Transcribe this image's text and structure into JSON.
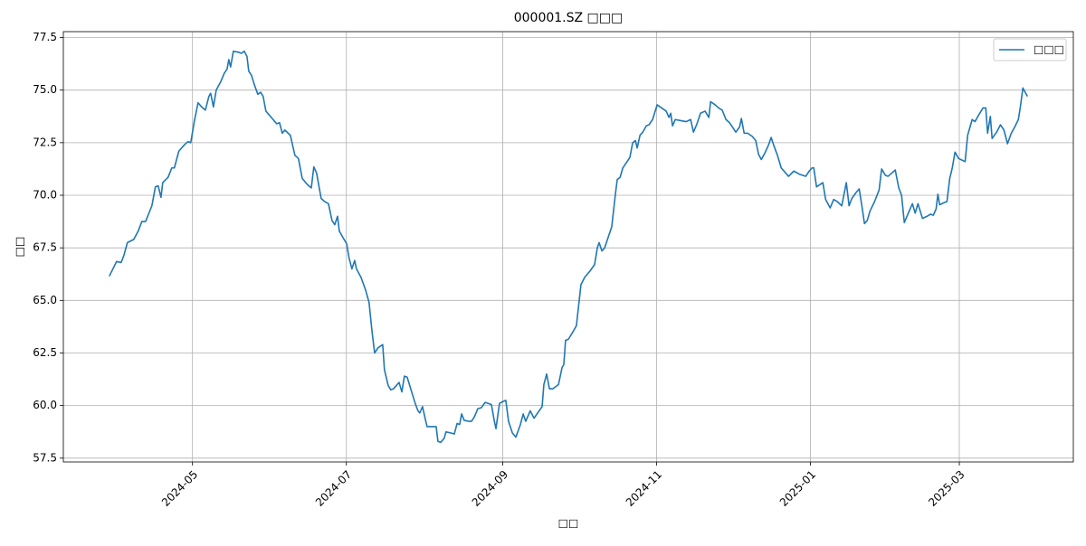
{
  "chart_data": {
    "type": "line",
    "title": "000001.SZ □□□",
    "x_label": "□□",
    "y_label": "□□",
    "x": [
      88.0,
      90.9,
      92.7,
      93.7,
      95.2,
      97.7,
      99.5,
      100.9,
      102.4,
      104.9,
      106.3,
      107.4,
      108.5,
      109.2,
      111.3,
      112.8,
      113.8,
      115.6,
      117.8,
      119.2,
      120.3,
      121.7,
      123.2,
      124.6,
      126.1,
      127.5,
      128.2,
      129.3,
      130.4,
      132.2,
      133.6,
      134.7,
      135.4,
      136.1,
      137.2,
      139.3,
      140.4,
      141.5,
      142.6,
      143.3,
      144.4,
      145.4,
      146.9,
      148.0,
      149.0,
      150.1,
      151.9,
      153.3,
      154.4,
      155.5,
      156.6,
      157.6,
      159.8,
      161.6,
      163.0,
      164.5,
      166.6,
      168.1,
      169.1,
      170.2,
      172.0,
      173.4,
      174.9,
      176.3,
      177.4,
      178.5,
      179.2,
      180.6,
      182.1,
      183.1,
      184.2,
      185.3,
      186.0,
      187.8,
      189.6,
      191.0,
      192.1,
      193.2,
      194.6,
      196.4,
      197.1,
      198.6,
      199.6,
      200.7,
      201.8,
      202.9,
      204.0,
      205.0,
      206.1,
      207.5,
      209.3,
      210.4,
      211.1,
      212.2,
      213.3,
      214.0,
      215.8,
      217.6,
      218.3,
      219.4,
      220.8,
      221.5,
      223.3,
      224.8,
      225.9,
      226.9,
      227.7,
      228.7,
      230.5,
      231.6,
      232.7,
      234.1,
      235.5,
      237.0,
      239.5,
      240.6,
      241.3,
      242.0,
      242.7,
      244.2,
      245.2,
      246.3,
      247.8,
      249.2,
      251.0,
      252.1,
      253.1,
      254.9,
      256.4,
      259.6,
      260.3,
      261.4,
      262.5,
      263.9,
      266.1,
      267.5,
      268.2,
      268.9,
      270.0,
      271.8,
      273.2,
      275.0,
      276.5,
      278.6,
      280.4,
      281.5,
      282.2,
      283.3,
      284.4,
      285.8,
      287.2,
      288.7,
      289.4,
      290.5,
      291.6,
      293.0,
      294.4,
      295.5,
      296.6,
      297.3,
      298.4,
      299.5,
      300.9,
      302.0,
      303.4,
      305.2,
      307.0,
      308.8,
      309.9,
      310.6,
      311.3,
      312.4,
      314.5,
      316.7,
      318.5,
      319.6,
      321.0,
      322.4,
      324.2,
      325.7,
      326.4,
      328.2,
      329.6,
      331.0,
      332.5,
      333.9,
      336.4,
      337.9,
      338.6,
      339.7,
      341.1,
      342.9,
      344.3,
      345.4,
      346.5,
      347.9,
      349.4,
      350.4,
      351.5,
      352.9,
      354.4,
      357.3,
      359.4,
      361.6,
      364.1,
      365.5,
      366.6,
      367.3,
      368.4,
      370.9,
      372.0,
      373.8,
      375.2,
      376.6,
      378.4,
      380.2,
      381.3,
      382.4,
      384.2,
      385.3,
      386.3,
      387.4,
      388.5,
      389.6,
      391.4,
      393.2,
      394.2,
      395.7,
      396.7,
      398.2,
      399.6,
      401.0,
      402.1,
      403.2,
      404.6,
      406.4,
      407.5,
      408.6,
      410.4,
      412.2,
      413.6,
      414.7,
      415.8,
      416.5,
      417.2,
      419.0,
      420.1,
      421.2,
      422.2,
      423.3,
      424.7,
      427.3,
      428.3,
      430.1,
      431.2,
      432.6,
      434.4,
      435.5,
      436.2,
      437.3,
      438.0,
      439.8,
      441.3,
      442.7,
      444.1,
      445.6,
      447.0,
      448.4,
      449.2,
      450.2,
      452.0
    ],
    "series": [
      {
        "name": "□□□",
        "color": "#1f77b4",
        "values": [
          66.15,
          66.85,
          66.8,
          67.1,
          67.75,
          67.9,
          68.3,
          68.75,
          68.75,
          69.5,
          70.4,
          70.45,
          69.9,
          70.6,
          70.85,
          71.3,
          71.3,
          72.1,
          72.4,
          72.55,
          72.5,
          73.5,
          74.4,
          74.2,
          74.05,
          74.7,
          74.85,
          74.2,
          75.0,
          75.4,
          75.8,
          76.0,
          76.45,
          76.1,
          76.85,
          76.8,
          76.75,
          76.85,
          76.6,
          75.9,
          75.7,
          75.3,
          74.8,
          74.9,
          74.7,
          74.0,
          73.75,
          73.55,
          73.4,
          73.45,
          72.95,
          73.1,
          72.85,
          71.9,
          71.75,
          70.8,
          70.5,
          70.35,
          71.35,
          71.05,
          69.85,
          69.7,
          69.6,
          68.8,
          68.6,
          69.0,
          68.3,
          68.0,
          67.7,
          67.0,
          66.5,
          66.9,
          66.5,
          66.1,
          65.5,
          64.9,
          63.6,
          62.5,
          62.75,
          62.9,
          61.7,
          60.95,
          60.75,
          60.8,
          60.95,
          61.1,
          60.65,
          61.4,
          61.35,
          60.8,
          60.1,
          59.75,
          59.65,
          59.95,
          59.35,
          59.0,
          59.0,
          59.0,
          58.3,
          58.25,
          58.45,
          58.75,
          58.7,
          58.65,
          59.15,
          59.1,
          59.6,
          59.3,
          59.25,
          59.25,
          59.45,
          59.85,
          59.9,
          60.15,
          60.05,
          59.3,
          58.9,
          59.5,
          60.1,
          60.2,
          60.25,
          59.25,
          58.7,
          58.5,
          59.1,
          59.6,
          59.25,
          59.75,
          59.4,
          59.95,
          61.0,
          61.5,
          60.8,
          60.8,
          61.0,
          61.8,
          61.95,
          63.1,
          63.15,
          63.5,
          63.8,
          65.75,
          66.1,
          66.4,
          66.7,
          67.5,
          67.75,
          67.35,
          67.5,
          68.0,
          68.5,
          70.1,
          70.75,
          70.85,
          71.3,
          71.55,
          71.8,
          72.5,
          72.6,
          72.25,
          72.85,
          73.0,
          73.3,
          73.35,
          73.6,
          74.3,
          74.15,
          74.0,
          73.7,
          73.9,
          73.3,
          73.6,
          73.55,
          73.5,
          73.6,
          73.0,
          73.4,
          73.9,
          74.0,
          73.7,
          74.45,
          74.3,
          74.15,
          74.05,
          73.6,
          73.45,
          73.0,
          73.25,
          73.65,
          72.95,
          72.95,
          72.8,
          72.6,
          71.95,
          71.7,
          72.0,
          72.4,
          72.75,
          72.35,
          71.9,
          71.3,
          70.9,
          71.15,
          71.0,
          70.9,
          71.15,
          71.3,
          71.3,
          70.4,
          70.6,
          69.8,
          69.4,
          69.8,
          69.7,
          69.5,
          70.6,
          69.5,
          69.85,
          70.15,
          70.3,
          69.55,
          68.65,
          68.8,
          69.25,
          69.7,
          70.25,
          71.25,
          70.95,
          70.9,
          71.05,
          71.2,
          70.35,
          70.0,
          68.7,
          69.1,
          69.6,
          69.15,
          69.6,
          68.9,
          69.0,
          69.1,
          69.05,
          69.35,
          70.05,
          69.55,
          69.65,
          69.7,
          70.8,
          71.3,
          72.05,
          71.75,
          71.6,
          72.85,
          73.6,
          73.5,
          73.8,
          74.15,
          74.15,
          72.95,
          73.75,
          72.7,
          73.0,
          73.35,
          73.1,
          72.45,
          72.95,
          73.25,
          73.6,
          74.2,
          75.1,
          74.7
        ]
      }
    ],
    "xlim": [
      69.8,
      470.2
    ],
    "xticks": [
      {
        "value": 121,
        "label": "2024-05"
      },
      {
        "value": 182,
        "label": "2024-07"
      },
      {
        "value": 244,
        "label": "2024-09"
      },
      {
        "value": 305,
        "label": "2024-11"
      },
      {
        "value": 366,
        "label": "2025-01"
      },
      {
        "value": 425,
        "label": "2025-03"
      }
    ],
    "ylim": [
      57.32,
      77.78
    ],
    "yticks": [
      57.5,
      {
        "value": 60,
        "label": "60.0"
      },
      62.5,
      {
        "value": 65,
        "label": "65.0"
      },
      67.5,
      {
        "value": 70,
        "label": "70.0"
      },
      72.5,
      {
        "value": 75,
        "label": "75.0"
      },
      77.5
    ],
    "grid": true,
    "legend": "upper right"
  }
}
